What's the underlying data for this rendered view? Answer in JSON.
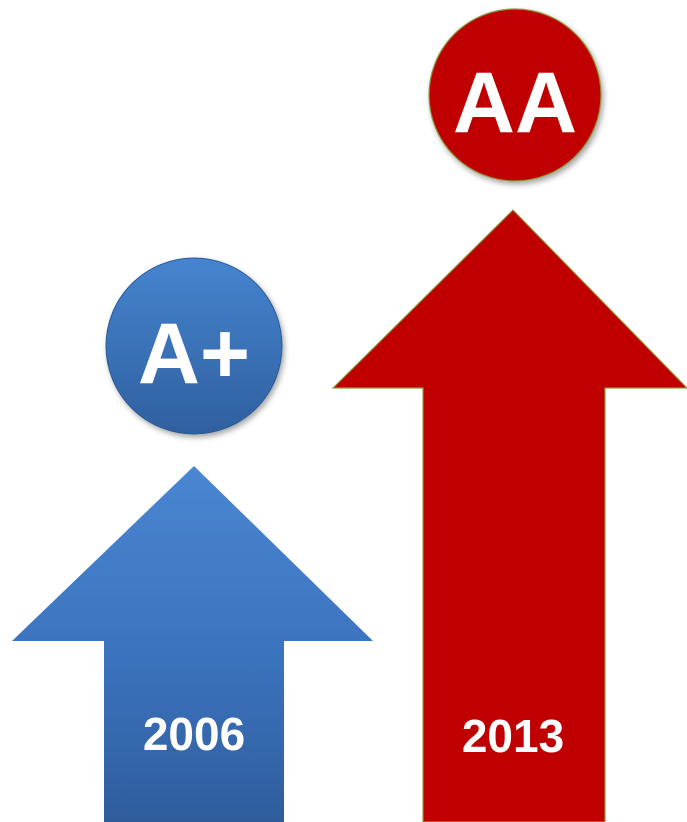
{
  "ratings": [
    {
      "year": "2006",
      "grade": "A+",
      "color": "#3a72bd",
      "color_light": "#4b86d0",
      "color_dark": "#2e5a96"
    },
    {
      "year": "2013",
      "grade": "AA",
      "color": "#c00000",
      "color_light": "#c00000",
      "color_dark": "#c00000"
    }
  ]
}
